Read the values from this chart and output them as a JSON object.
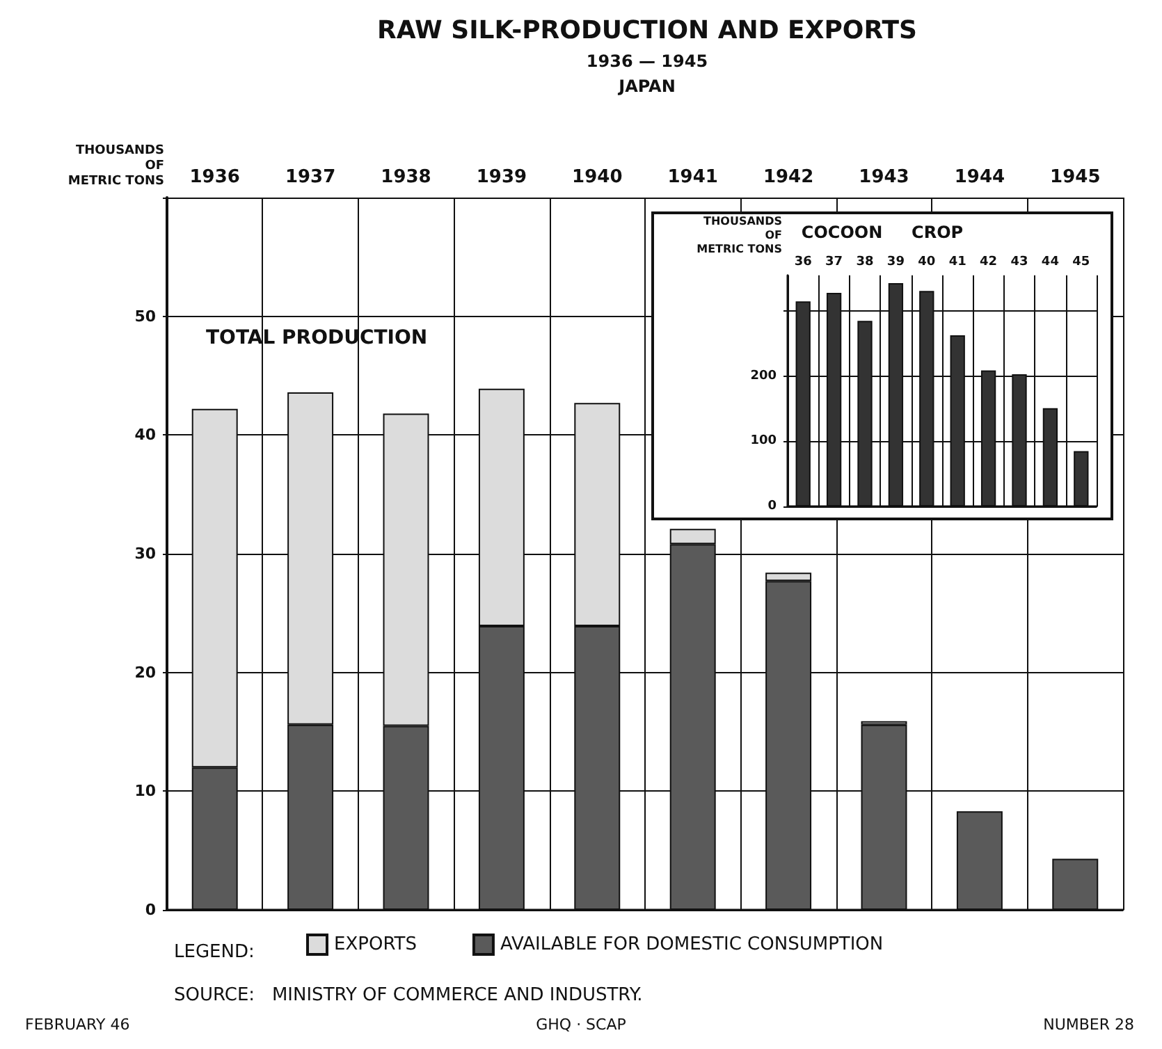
{
  "chart_data": [
    {
      "type": "bar",
      "title": "RAW SILK-PRODUCTION AND EXPORTS",
      "subtitle": "1936 — 1945\nJAPAN",
      "ylabel": "THOUSANDS\nOF\nMETRIC TONS",
      "categories": [
        "1936",
        "1937",
        "1938",
        "1939",
        "1940",
        "1941",
        "1942",
        "1943",
        "1944",
        "1945"
      ],
      "stacked": true,
      "series": [
        {
          "name": "AVAILABLE FOR DOMESTIC CONSUMPTION",
          "color": "#5a5a5a",
          "values": [
            12,
            15.6,
            15.5,
            23.9,
            23.9,
            30.8,
            27.7,
            15.6,
            8.3,
            4.3
          ]
        },
        {
          "name": "EXPORTS",
          "color": "#dcdcdc",
          "values": [
            30.2,
            28,
            26.3,
            20,
            18.8,
            1.3,
            0.7,
            0.3,
            0,
            0
          ]
        }
      ],
      "ylim": [
        0,
        60
      ],
      "yticks": [
        0,
        10,
        20,
        30,
        40,
        50,
        {
          "value": 60,
          "label": null
        }
      ],
      "grid": true,
      "legend": "bottom",
      "legend_title": "LEGEND:",
      "annotations": [
        "TOTAL PRODUCTION",
        "SOURCE:   MINISTRY OF COMMERCE AND INDUSTRY.",
        "FEBRUARY 46",
        "GHQ · SCAP",
        "NUMBER 28"
      ]
    },
    {
      "type": "bar",
      "title": "COCOON     CROP",
      "ylabel": "THOUSANDS\nOF\nMETRIC TONS",
      "categories": [
        "36",
        "37",
        "38",
        "39",
        "40",
        "41",
        "42",
        "43",
        "44",
        "45"
      ],
      "values": [
        315,
        328,
        285,
        343,
        331,
        263,
        209,
        203,
        151,
        85
      ],
      "color": "#333333",
      "ylim": [
        0,
        355
      ],
      "yticks": [
        0,
        100,
        200,
        {
          "value": 300,
          "label": null
        }
      ],
      "grid": true
    }
  ]
}
